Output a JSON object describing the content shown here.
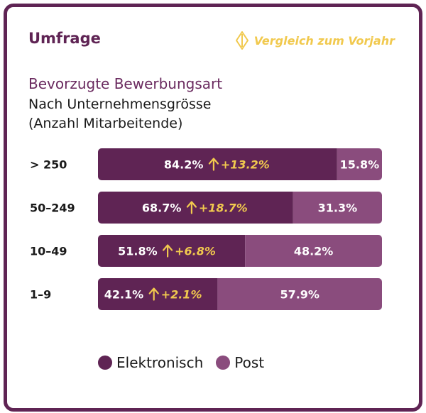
{
  "header": {
    "kicker": "Umfrage",
    "compare_label": "Vergleich zum Vorjahr",
    "compare_icon": "up-down-arrow-icon"
  },
  "colors": {
    "electronic": "#5f2454",
    "post": "#8a4c7d",
    "accent": "#f1c94e",
    "text": "#1a1a1a"
  },
  "chart_data": {
    "type": "bar",
    "orientation": "horizontal",
    "stacked": true,
    "title": "Bevorzugte Bewerbungsart",
    "subtitle": "Nach Unternehmensgrösse\n(Anzahl Mitarbeitende)",
    "categories": [
      "> 250",
      "50–249",
      "10–49",
      "1–9"
    ],
    "series": [
      {
        "name": "Elektronisch",
        "values": [
          84.2,
          68.7,
          51.8,
          42.1
        ],
        "labels": [
          "84.2%",
          "68.7%",
          "51.8%",
          "42.1%"
        ]
      },
      {
        "name": "Post",
        "values": [
          15.8,
          31.3,
          48.2,
          57.9
        ],
        "labels": [
          "15.8%",
          "31.3%",
          "48.2%",
          "57.9%"
        ]
      }
    ],
    "change_vs_previous_year": [
      13.2,
      18.7,
      6.8,
      2.1
    ],
    "change_labels": [
      "+13.2%",
      "+18.7%",
      "+6.8%",
      "+2.1%"
    ],
    "xlim": [
      0,
      100
    ],
    "legend_position": "bottom"
  }
}
